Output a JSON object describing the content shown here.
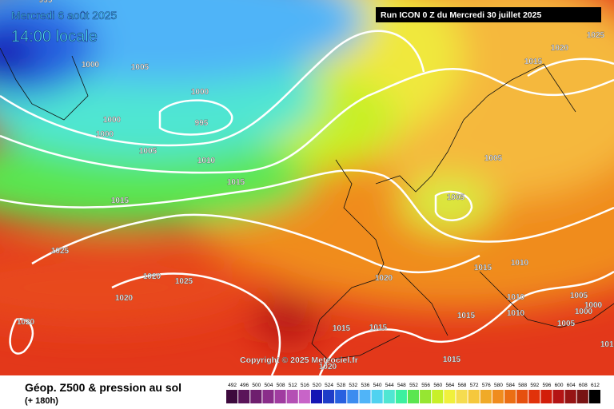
{
  "map": {
    "date": "Mercredi 6 août 2025",
    "time": "14:00 locale",
    "run": "Run ICON 0 Z du Mercredi 30 juillet 2025",
    "copyright": "Copyright © 2025 Meteociel.fr",
    "isobar_labels": [
      "995",
      "1000",
      "1005",
      "1000",
      "995",
      "1000",
      "1000",
      "1005",
      "1010",
      "1015",
      "1015",
      "1025",
      "1020",
      "1025",
      "1020",
      "1020",
      "1020",
      "1015",
      "1015",
      "1020",
      "1015",
      "1015",
      "1015",
      "1010",
      "1010",
      "1010",
      "1005",
      "1000",
      "1000",
      "1005",
      "1005",
      "1005",
      "1015",
      "1020",
      "1025",
      "1010"
    ]
  },
  "legend": {
    "title": "Géop. Z500 & pression au sol",
    "subtitle": "(+ 180h)",
    "scale": [
      492,
      496,
      500,
      504,
      508,
      512,
      516,
      520,
      524,
      528,
      532,
      536,
      540,
      544,
      548,
      552,
      556,
      560,
      564,
      568,
      572,
      576,
      580,
      584,
      588,
      592,
      596,
      600,
      604,
      608,
      612
    ],
    "colors": [
      "#3d0a3d",
      "#5a1459",
      "#6e1e6e",
      "#8a2d8a",
      "#a03ca0",
      "#b450b4",
      "#c864c8",
      "#1414b4",
      "#1e3cc8",
      "#2860e0",
      "#3c8cf0",
      "#50b4f8",
      "#50d2f0",
      "#50e6d2",
      "#3cf0a0",
      "#5ae650",
      "#96e632",
      "#c8f028",
      "#f0f03c",
      "#f5dc50",
      "#f5c83c",
      "#f0aa28",
      "#f08c1e",
      "#eb6e14",
      "#e6500f",
      "#e1320a",
      "#d21e0a",
      "#b41414",
      "#961414",
      "#781414",
      "#000000"
    ]
  }
}
